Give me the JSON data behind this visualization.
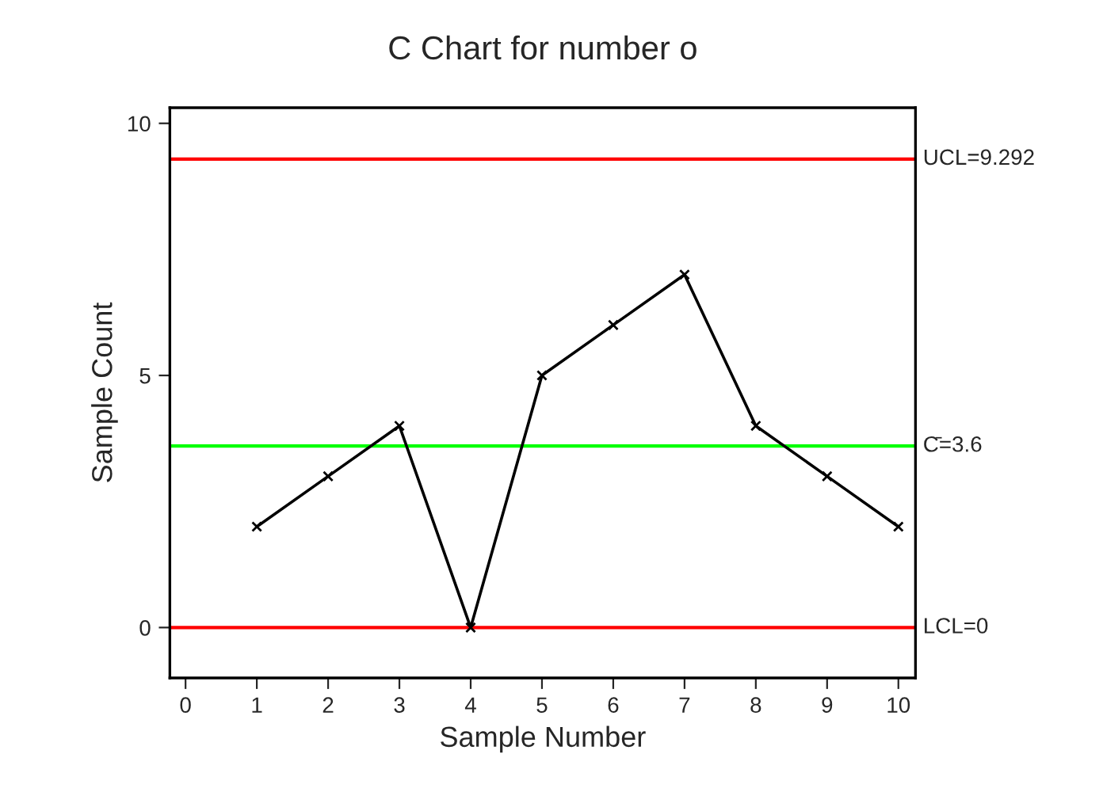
{
  "chart_data": {
    "type": "line",
    "title": "C Chart for number o",
    "xlabel": "Sample Number",
    "ylabel": "Sample Count",
    "x": [
      1,
      2,
      3,
      4,
      5,
      6,
      7,
      8,
      9,
      10
    ],
    "series": [
      {
        "color": "#000000",
        "values": [
          2,
          3,
          4,
          0,
          5,
          6,
          7,
          4,
          3,
          2
        ]
      }
    ],
    "xlim": [
      -0.22,
      10.24
    ],
    "xticks": [
      0,
      1,
      2,
      3,
      4,
      5,
      6,
      7,
      8,
      9,
      10
    ],
    "ylim": [
      -1.0,
      10.31
    ],
    "yticks": [
      0,
      5,
      10
    ],
    "ref_lines": [
      {
        "axis": "y",
        "value": 9.292,
        "label": "UCL=9.292",
        "color": "#ff0000"
      },
      {
        "axis": "y",
        "value": 3.6,
        "label": "C̄=3.6",
        "color": "#00ff00"
      },
      {
        "axis": "y",
        "value": 0,
        "label": "LCL=0",
        "color": "#ff0000"
      }
    ],
    "marker": "cross",
    "line_style": "solid",
    "grid": false
  }
}
